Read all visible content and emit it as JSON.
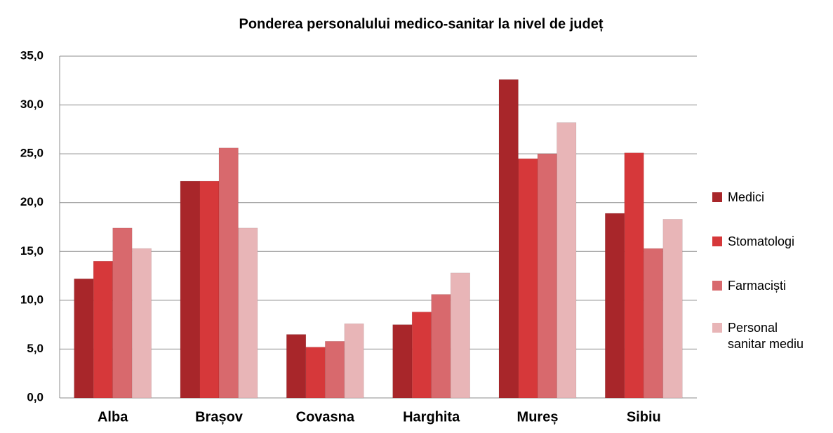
{
  "chart_data": {
    "type": "bar",
    "title": "Ponderea personalului medico-sanitar la nivel de județ",
    "categories": [
      "Alba",
      "Brașov",
      "Covasna",
      "Harghita",
      "Mureș",
      "Sibiu"
    ],
    "series": [
      {
        "name": "Medici",
        "color": "#a8262a",
        "values": [
          12.2,
          22.2,
          6.5,
          7.5,
          32.6,
          18.9
        ]
      },
      {
        "name": "Stomatologi",
        "color": "#d6383a",
        "values": [
          14.0,
          22.2,
          5.2,
          8.8,
          24.5,
          25.1
        ]
      },
      {
        "name": "Farmaciști",
        "color": "#d8696d",
        "values": [
          17.4,
          25.6,
          5.8,
          10.6,
          25.0,
          15.3
        ]
      },
      {
        "name": "Personal sanitar mediu",
        "color": "#e8b5b7",
        "values": [
          15.3,
          17.4,
          7.6,
          12.8,
          28.2,
          18.3
        ]
      }
    ],
    "ylim": [
      0,
      35
    ],
    "yticks": [
      {
        "value": 0,
        "label": "0,0"
      },
      {
        "value": 5,
        "label": "5,0"
      },
      {
        "value": 10,
        "label": "10,0"
      },
      {
        "value": 15,
        "label": "15,0"
      },
      {
        "value": 20,
        "label": "20,0"
      },
      {
        "value": 25,
        "label": "25,0"
      },
      {
        "value": 30,
        "label": "30,0"
      },
      {
        "value": 35,
        "label": "35,0"
      }
    ],
    "grid": true,
    "legend": "right"
  }
}
